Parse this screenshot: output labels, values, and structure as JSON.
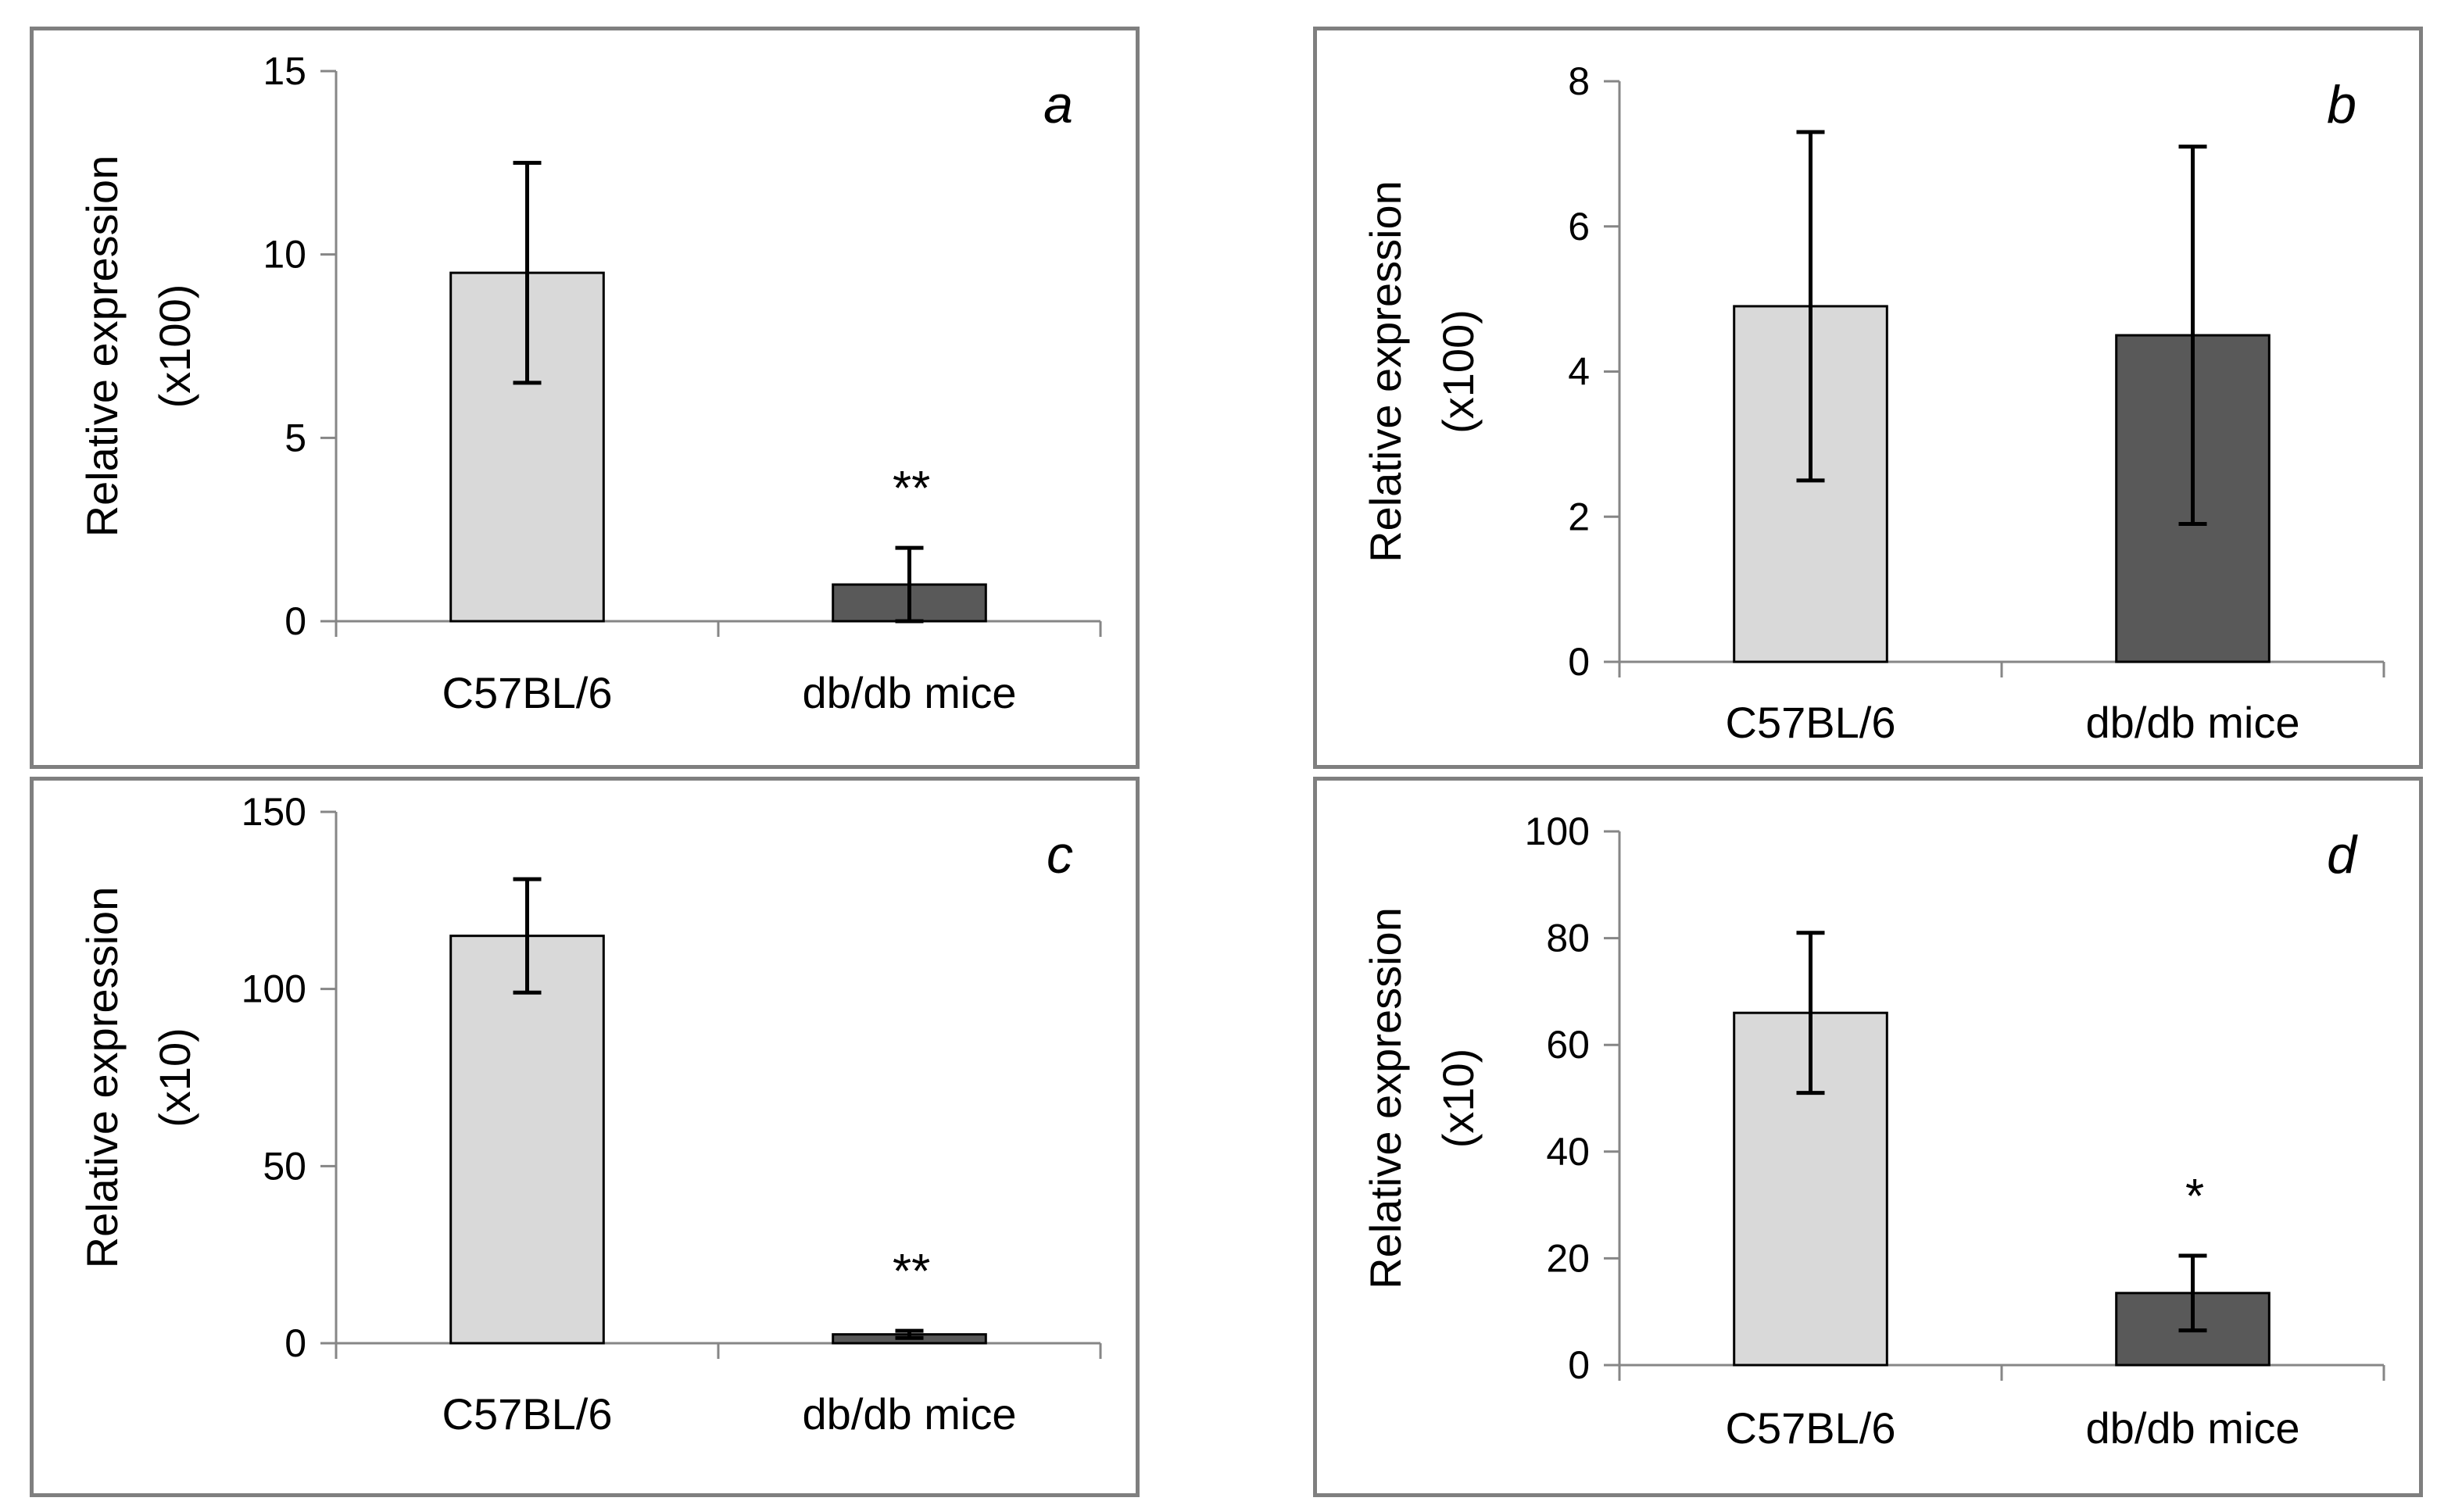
{
  "chart_data": [
    {
      "type": "bar",
      "panel_label": "a",
      "categories": [
        "C57BL/6",
        "db/db mice"
      ],
      "values": [
        9.5,
        1.0
      ],
      "error": [
        3.0,
        1.0
      ],
      "annotations": [
        "",
        "**"
      ],
      "ylabel": "Relative expression",
      "ylabel_unit": "(x100)",
      "ylim": [
        0,
        15
      ],
      "yticks": [
        0,
        5,
        10,
        15
      ],
      "bar_colors": [
        "#d9d9d9",
        "#595959"
      ]
    },
    {
      "type": "bar",
      "panel_label": "b",
      "categories": [
        "C57BL/6",
        "db/db mice"
      ],
      "values": [
        4.9,
        4.5
      ],
      "error": [
        2.4,
        2.6
      ],
      "annotations": [
        "",
        ""
      ],
      "ylabel": "Relative expression",
      "ylabel_unit": "(x100)",
      "ylim": [
        0,
        8
      ],
      "yticks": [
        0,
        2,
        4,
        6,
        8
      ],
      "bar_colors": [
        "#d9d9d9",
        "#595959"
      ]
    },
    {
      "type": "bar",
      "panel_label": "c",
      "categories": [
        "C57BL/6",
        "db/db mice"
      ],
      "values": [
        115,
        2.5
      ],
      "error": [
        16,
        1
      ],
      "annotations": [
        "",
        "**"
      ],
      "ylabel": "Relative expression",
      "ylabel_unit": "(x10)",
      "ylim": [
        0,
        150
      ],
      "yticks": [
        0,
        50,
        100,
        150
      ],
      "bar_colors": [
        "#d9d9d9",
        "#595959"
      ]
    },
    {
      "type": "bar",
      "panel_label": "d",
      "categories": [
        "C57BL/6",
        "db/db mice"
      ],
      "values": [
        66,
        13.5
      ],
      "error": [
        15,
        7
      ],
      "annotations": [
        "",
        "*"
      ],
      "ylabel": "Relative expression",
      "ylabel_unit": "(x10)",
      "ylim": [
        0,
        100
      ],
      "yticks": [
        0,
        20,
        40,
        60,
        80,
        100
      ],
      "bar_colors": [
        "#d9d9d9",
        "#595959"
      ]
    }
  ]
}
